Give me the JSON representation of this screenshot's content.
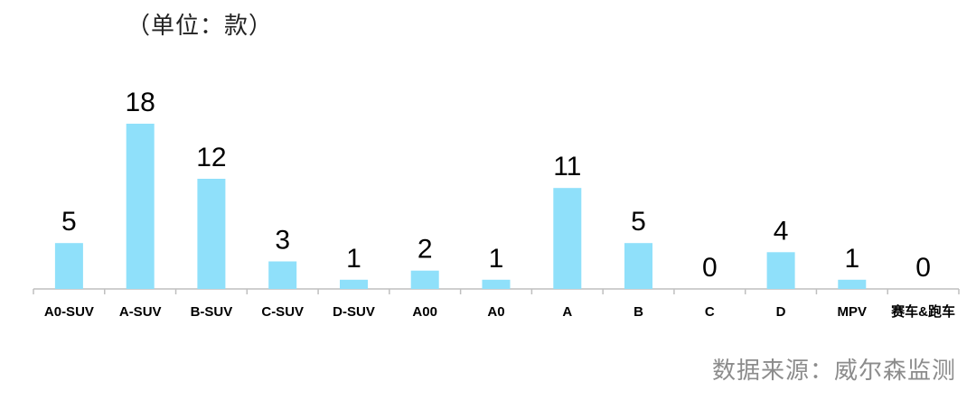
{
  "header": {
    "unit_label": "（单位：款）"
  },
  "footer": {
    "source_label": "数据来源：威尔森监测"
  },
  "colors": {
    "bar": "#8fe0fa",
    "axis": "#bfbfbf",
    "value_text": "#000000",
    "tick_text": "#000000"
  },
  "chart_data": {
    "type": "bar",
    "title": "",
    "xlabel": "",
    "ylabel": "",
    "ylim": [
      0,
      18
    ],
    "grid": false,
    "legend": "none",
    "categories": [
      "A0-SUV",
      "A-SUV",
      "B-SUV",
      "C-SUV",
      "D-SUV",
      "A00",
      "A0",
      "A",
      "B",
      "C",
      "D",
      "MPV",
      "赛车&跑车"
    ],
    "values": [
      5,
      18,
      12,
      3,
      1,
      2,
      1,
      11,
      5,
      0,
      4,
      1,
      0
    ]
  }
}
